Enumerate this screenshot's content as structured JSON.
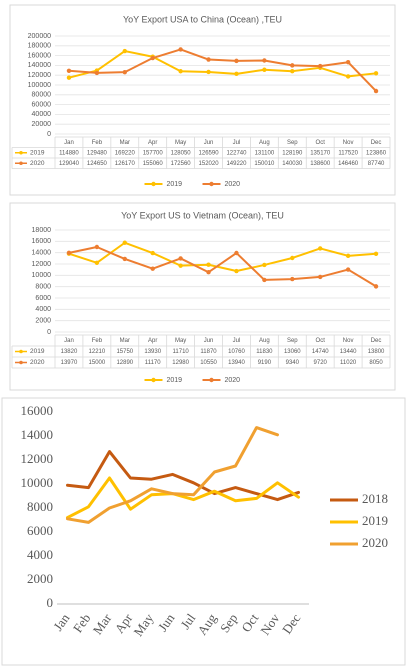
{
  "chart_data": [
    {
      "type": "line",
      "title": "YoY Export USA to China (Ocean) ,TEU",
      "categories": [
        "Jan",
        "Feb",
        "Mar",
        "Apr",
        "May",
        "Jun",
        "Jul",
        "Aug",
        "Sep",
        "Oct",
        "Nov",
        "Dec"
      ],
      "series": [
        {
          "name": "2019",
          "color": "#ffc000",
          "values": [
            114880,
            129480,
            169220,
            157700,
            128050,
            126590,
            122740,
            131100,
            128190,
            135170,
            117520,
            123860
          ]
        },
        {
          "name": "2020",
          "color": "#ed7d31",
          "values": [
            129040,
            124650,
            126170,
            155060,
            172560,
            152020,
            149220,
            150010,
            140030,
            138600,
            146460,
            87740
          ]
        }
      ],
      "ylim": [
        0,
        200000
      ],
      "yticks": [
        0,
        20000,
        40000,
        60000,
        80000,
        100000,
        120000,
        140000,
        160000,
        180000,
        200000
      ],
      "grid": true,
      "markers": true,
      "data_table": true,
      "legend": "bottom"
    },
    {
      "type": "line",
      "title": "YoY Export US to Vietnam (Ocean), TEU",
      "categories": [
        "Jan",
        "Feb",
        "Mar",
        "Apr",
        "May",
        "Jun",
        "Jul",
        "Aug",
        "Sep",
        "Oct",
        "Nov",
        "Dec"
      ],
      "series": [
        {
          "name": "2019",
          "color": "#ffc000",
          "values": [
            13820,
            12210,
            15750,
            13930,
            11710,
            11870,
            10760,
            11830,
            13060,
            14740,
            13440,
            13800
          ]
        },
        {
          "name": "2020",
          "color": "#ed7d31",
          "values": [
            13970,
            15000,
            12890,
            11170,
            12980,
            10550,
            13940,
            9190,
            9340,
            9720,
            11020,
            8050
          ]
        }
      ],
      "ylim": [
        0,
        18000
      ],
      "yticks": [
        0,
        2000,
        4000,
        6000,
        8000,
        10000,
        12000,
        14000,
        16000,
        18000
      ],
      "grid": true,
      "markers": true,
      "data_table": true,
      "legend": "bottom"
    },
    {
      "type": "line",
      "categories": [
        "Jan",
        "Feb",
        "Mar",
        "Apr",
        "May",
        "Jun",
        "Jul",
        "Aug",
        "Sep",
        "Oct",
        "Nov",
        "Dec"
      ],
      "series": [
        {
          "name": "2018",
          "color": "#c55a11",
          "values": [
            9900,
            9700,
            12700,
            10500,
            10400,
            10800,
            10100,
            9200,
            9700,
            9200,
            8700,
            9300
          ]
        },
        {
          "name": "2019",
          "color": "#ffc000",
          "values": [
            7200,
            8100,
            10500,
            7900,
            9100,
            9200,
            8700,
            9400,
            8600,
            8800,
            10100,
            8900
          ]
        },
        {
          "name": "2020",
          "color": "#f0a030",
          "values": [
            7100,
            6800,
            8000,
            8600,
            9600,
            9200,
            9100,
            11000,
            11500,
            14700,
            14100,
            null
          ]
        }
      ],
      "ylim": [
        0,
        16000
      ],
      "yticks": [
        0,
        2000,
        4000,
        6000,
        8000,
        10000,
        12000,
        14000,
        16000
      ],
      "grid": false,
      "markers": false,
      "data_table": false,
      "legend": "right"
    }
  ]
}
